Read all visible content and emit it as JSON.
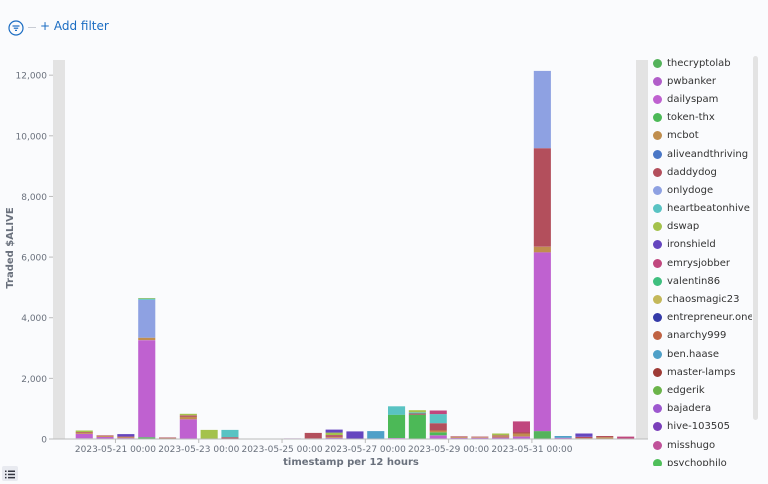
{
  "toolbar": {
    "add_filter_label": "+ Add filter",
    "filter_icon": "filter-icon"
  },
  "colors": {
    "accent": "#1a6cc2"
  },
  "chart_data": {
    "type": "bar",
    "stacked": true,
    "title": "",
    "xlabel": "timestamp per 12 hours",
    "ylabel": "Traded $ALIVE",
    "ylim": [
      0,
      12500
    ],
    "yticks": [
      0,
      2000,
      4000,
      6000,
      8000,
      10000,
      12000
    ],
    "ytick_labels": [
      "0",
      "2,000",
      "4,000",
      "6,000",
      "8,000",
      "10,000",
      "12,000"
    ],
    "xtick_labels": [
      "2023-05-21 00:00",
      "2023-05-23 00:00",
      "2023-05-25 00:00",
      "2023-05-27 00:00",
      "2023-05-29 00:00",
      "2023-05-31 00:00"
    ],
    "grid": false,
    "legend_position": "right",
    "categories": [
      "2023-05-19 12:00",
      "2023-05-20 00:00",
      "2023-05-20 12:00",
      "2023-05-21 00:00",
      "2023-05-21 12:00",
      "2023-05-22 00:00",
      "2023-05-22 12:00",
      "2023-05-23 00:00",
      "2023-05-23 12:00",
      "2023-05-24 00:00",
      "2023-05-24 12:00",
      "2023-05-25 00:00",
      "2023-05-25 12:00",
      "2023-05-26 00:00",
      "2023-05-26 12:00",
      "2023-05-27 00:00",
      "2023-05-27 12:00",
      "2023-05-28 00:00",
      "2023-05-28 12:00",
      "2023-05-29 00:00",
      "2023-05-29 12:00",
      "2023-05-30 00:00",
      "2023-05-30 12:00",
      "2023-05-31 00:00",
      "2023-05-31 12:00",
      "2023-06-01 00:00",
      "2023-06-01 12:00",
      "2023-06-02 00:00"
    ],
    "series": [
      {
        "name": "thecryptolab",
        "color": "#54b35b",
        "values": [
          15,
          20,
          10,
          0,
          60,
          0,
          0,
          0,
          0,
          0,
          0,
          0,
          0,
          0,
          0,
          0,
          0,
          0,
          0,
          0,
          0,
          0,
          0,
          260,
          0,
          0,
          0,
          0
        ]
      },
      {
        "name": "pwbanker",
        "color": "#b15ec9",
        "values": [
          0,
          0,
          0,
          0,
          0,
          0,
          0,
          0,
          0,
          0,
          0,
          0,
          0,
          0,
          0,
          0,
          0,
          0,
          0,
          0,
          0,
          0,
          0,
          0,
          0,
          0,
          0,
          0
        ]
      },
      {
        "name": "dailyspam",
        "color": "#bf61d0",
        "values": [
          0,
          150,
          60,
          30,
          3200,
          30,
          650,
          0,
          0,
          0,
          0,
          20,
          0,
          40,
          0,
          0,
          30,
          0,
          120,
          40,
          40,
          50,
          80,
          5900,
          40,
          0,
          0,
          0
        ]
      },
      {
        "name": "token-thx",
        "color": "#4cb957",
        "values": [
          0,
          0,
          0,
          0,
          0,
          0,
          0,
          0,
          0,
          0,
          0,
          0,
          0,
          0,
          0,
          0,
          770,
          800,
          100,
          0,
          0,
          0,
          0,
          0,
          0,
          0,
          0,
          0
        ]
      },
      {
        "name": "mcbot",
        "color": "#c08e4e",
        "values": [
          0,
          40,
          30,
          30,
          80,
          10,
          80,
          0,
          0,
          0,
          0,
          0,
          20,
          30,
          0,
          0,
          0,
          0,
          60,
          30,
          20,
          40,
          100,
          180,
          0,
          30,
          60,
          0
        ]
      },
      {
        "name": "aliveandthriving",
        "color": "#4a77c6",
        "values": [
          0,
          0,
          0,
          0,
          0,
          0,
          0,
          0,
          0,
          0,
          0,
          0,
          0,
          0,
          0,
          0,
          0,
          0,
          0,
          0,
          0,
          0,
          0,
          0,
          0,
          0,
          0,
          0
        ]
      },
      {
        "name": "daddydog",
        "color": "#b34f5c",
        "values": [
          0,
          20,
          20,
          20,
          0,
          10,
          50,
          0,
          60,
          0,
          0,
          0,
          180,
          60,
          0,
          0,
          0,
          40,
          240,
          20,
          20,
          30,
          50,
          3250,
          0,
          40,
          40,
          0
        ]
      },
      {
        "name": "onlydoge",
        "color": "#8ea1e2",
        "values": [
          0,
          0,
          0,
          0,
          1250,
          0,
          0,
          0,
          0,
          0,
          0,
          0,
          0,
          0,
          0,
          0,
          0,
          0,
          0,
          0,
          0,
          0,
          0,
          2550,
          0,
          0,
          0,
          0
        ]
      },
      {
        "name": "heartbeatonhive",
        "color": "#59c3c3",
        "values": [
          0,
          0,
          0,
          0,
          40,
          0,
          0,
          0,
          240,
          0,
          0,
          0,
          0,
          0,
          0,
          0,
          280,
          40,
          300,
          0,
          0,
          0,
          0,
          0,
          0,
          0,
          0,
          0
        ]
      },
      {
        "name": "dswap",
        "color": "#a4c24c",
        "values": [
          0,
          50,
          0,
          0,
          20,
          0,
          50,
          300,
          0,
          0,
          0,
          0,
          0,
          80,
          0,
          0,
          0,
          70,
          0,
          0,
          0,
          60,
          0,
          0,
          0,
          0,
          0,
          0
        ]
      },
      {
        "name": "ironshield",
        "color": "#6546bf",
        "values": [
          0,
          0,
          0,
          80,
          0,
          0,
          0,
          0,
          0,
          0,
          0,
          0,
          0,
          100,
          250,
          0,
          0,
          0,
          0,
          0,
          0,
          0,
          0,
          0,
          0,
          110,
          0,
          0
        ]
      },
      {
        "name": "emrysjobber",
        "color": "#c0477e",
        "values": [
          0,
          0,
          0,
          0,
          0,
          0,
          0,
          0,
          0,
          0,
          0,
          0,
          0,
          0,
          0,
          0,
          0,
          0,
          120,
          0,
          0,
          0,
          350,
          0,
          0,
          0,
          0,
          80
        ]
      },
      {
        "name": "valentin86",
        "color": "#3fbf7f",
        "values": [
          0,
          0,
          0,
          0,
          0,
          0,
          0,
          0,
          0,
          0,
          0,
          0,
          0,
          0,
          0,
          0,
          0,
          0,
          0,
          0,
          0,
          0,
          0,
          0,
          0,
          0,
          0,
          0
        ]
      },
      {
        "name": "chaosmagic23",
        "color": "#c4b85a",
        "values": [
          0,
          0,
          0,
          0,
          0,
          0,
          0,
          0,
          0,
          0,
          0,
          0,
          0,
          0,
          0,
          0,
          0,
          0,
          0,
          0,
          0,
          0,
          0,
          0,
          0,
          0,
          0,
          0
        ]
      },
      {
        "name": "entrepreneur.one",
        "color": "#343aa8",
        "values": [
          0,
          0,
          0,
          0,
          0,
          0,
          0,
          0,
          0,
          0,
          0,
          0,
          0,
          0,
          0,
          0,
          0,
          0,
          0,
          0,
          0,
          0,
          0,
          0,
          0,
          0,
          0,
          0
        ]
      },
      {
        "name": "anarchy999",
        "color": "#c06343",
        "values": [
          0,
          0,
          0,
          0,
          0,
          0,
          0,
          0,
          0,
          0,
          0,
          0,
          0,
          0,
          0,
          0,
          0,
          0,
          0,
          0,
          0,
          0,
          0,
          0,
          0,
          0,
          0,
          0
        ]
      },
      {
        "name": "ben.haase",
        "color": "#4fa0c8",
        "values": [
          0,
          0,
          0,
          0,
          0,
          0,
          0,
          0,
          0,
          0,
          0,
          0,
          0,
          0,
          0,
          260,
          0,
          0,
          0,
          0,
          0,
          0,
          0,
          0,
          60,
          0,
          0,
          0
        ]
      },
      {
        "name": "master-lamps",
        "color": "#9e3b36",
        "values": [
          0,
          0,
          0,
          0,
          0,
          0,
          0,
          0,
          0,
          0,
          0,
          0,
          0,
          0,
          0,
          0,
          0,
          0,
          0,
          0,
          0,
          0,
          0,
          0,
          0,
          0,
          0,
          0
        ]
      },
      {
        "name": "edgerik",
        "color": "#6bb44a",
        "values": [
          0,
          0,
          0,
          0,
          0,
          0,
          0,
          0,
          0,
          0,
          0,
          0,
          0,
          0,
          0,
          0,
          0,
          0,
          0,
          0,
          0,
          0,
          0,
          0,
          0,
          0,
          0,
          0
        ]
      },
      {
        "name": "bajadera",
        "color": "#9d58cf",
        "values": [
          0,
          0,
          0,
          0,
          0,
          0,
          0,
          0,
          0,
          0,
          0,
          0,
          0,
          0,
          0,
          0,
          0,
          0,
          0,
          0,
          0,
          0,
          0,
          0,
          0,
          0,
          0,
          0
        ]
      },
      {
        "name": "hive-103505",
        "color": "#7a3fba",
        "values": [
          0,
          0,
          0,
          0,
          0,
          0,
          0,
          0,
          0,
          0,
          0,
          0,
          0,
          0,
          0,
          0,
          0,
          0,
          0,
          0,
          0,
          0,
          0,
          0,
          0,
          0,
          0,
          0
        ]
      },
      {
        "name": "misshugo",
        "color": "#c0529a",
        "values": [
          0,
          0,
          0,
          0,
          0,
          0,
          0,
          0,
          0,
          0,
          0,
          0,
          0,
          0,
          0,
          0,
          0,
          0,
          0,
          0,
          0,
          0,
          0,
          0,
          0,
          0,
          0,
          0
        ]
      },
      {
        "name": "psychophilo",
        "color": "#4fbf5a",
        "values": [
          0,
          0,
          0,
          0,
          0,
          0,
          0,
          0,
          0,
          0,
          0,
          0,
          0,
          0,
          0,
          0,
          0,
          0,
          0,
          0,
          0,
          0,
          0,
          0,
          0,
          0,
          0,
          0
        ]
      }
    ]
  }
}
